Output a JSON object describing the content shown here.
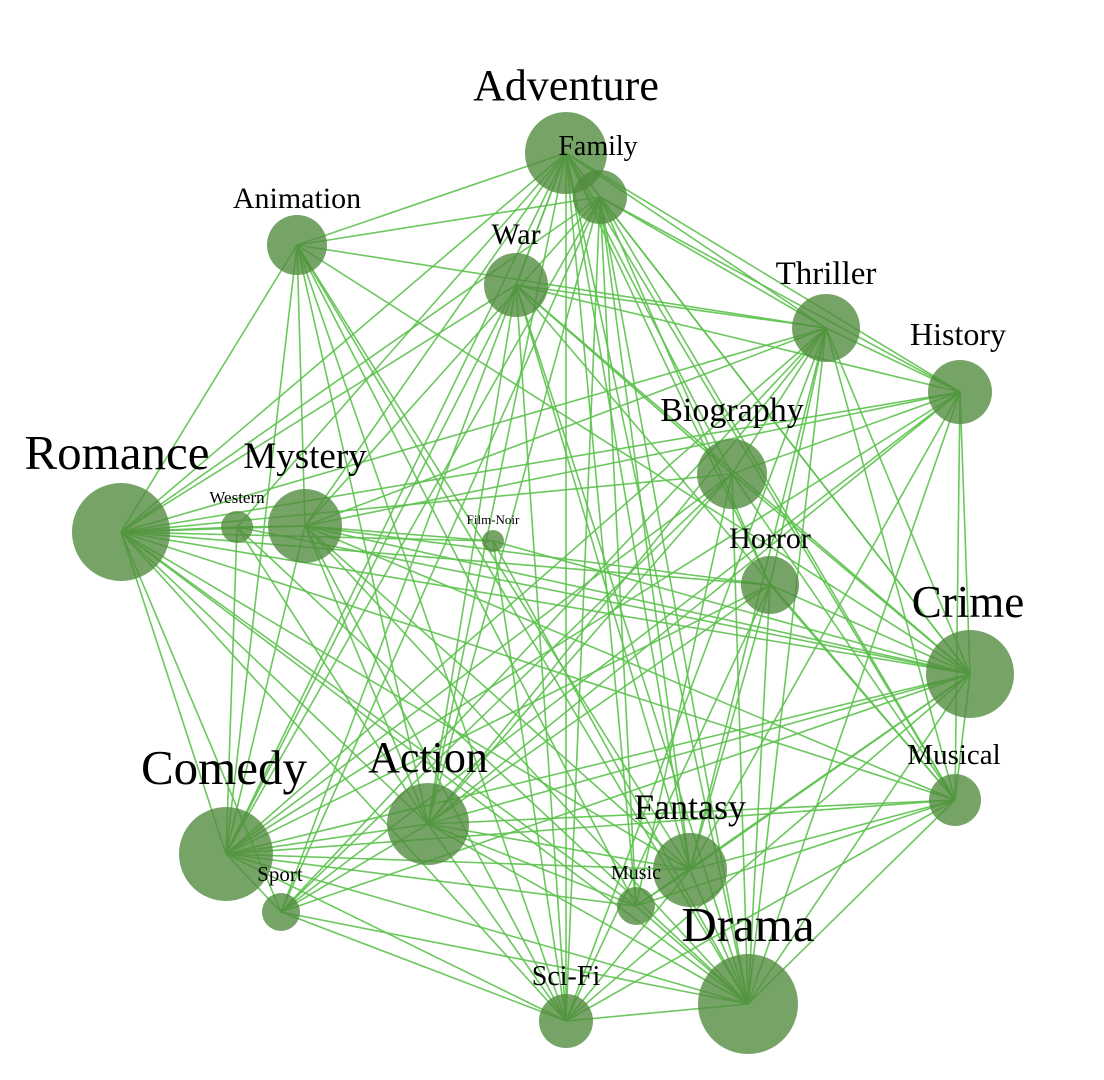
{
  "colors": {
    "edge": "#5cc14c",
    "node": "#4f8a3c",
    "label": "#000000",
    "background": "#ffffff"
  },
  "nodes": [
    {
      "id": "adventure",
      "label": "Adventure"
    },
    {
      "id": "family",
      "label": "Family"
    },
    {
      "id": "animation",
      "label": "Animation"
    },
    {
      "id": "war",
      "label": "War"
    },
    {
      "id": "thriller",
      "label": "Thriller"
    },
    {
      "id": "history",
      "label": "History"
    },
    {
      "id": "biography",
      "label": "Biography"
    },
    {
      "id": "romance",
      "label": "Romance"
    },
    {
      "id": "mystery",
      "label": "Mystery"
    },
    {
      "id": "western",
      "label": "Western"
    },
    {
      "id": "film-noir",
      "label": "Film-Noir"
    },
    {
      "id": "horror",
      "label": "Horror"
    },
    {
      "id": "crime",
      "label": "Crime"
    },
    {
      "id": "comedy",
      "label": "Comedy"
    },
    {
      "id": "action",
      "label": "Action"
    },
    {
      "id": "musical",
      "label": "Musical"
    },
    {
      "id": "fantasy",
      "label": "Fantasy"
    },
    {
      "id": "sport",
      "label": "Sport"
    },
    {
      "id": "music",
      "label": "Music"
    },
    {
      "id": "drama",
      "label": "Drama"
    },
    {
      "id": "sci-fi",
      "label": "Sci-Fi"
    }
  ],
  "edges": [
    [
      "adventure",
      "family"
    ],
    [
      "adventure",
      "animation"
    ],
    [
      "adventure",
      "war"
    ],
    [
      "adventure",
      "thriller"
    ],
    [
      "adventure",
      "history"
    ],
    [
      "adventure",
      "biography"
    ],
    [
      "adventure",
      "romance"
    ],
    [
      "adventure",
      "mystery"
    ],
    [
      "adventure",
      "crime"
    ],
    [
      "adventure",
      "comedy"
    ],
    [
      "adventure",
      "action"
    ],
    [
      "adventure",
      "fantasy"
    ],
    [
      "adventure",
      "drama"
    ],
    [
      "adventure",
      "sci-fi"
    ],
    [
      "adventure",
      "horror"
    ],
    [
      "adventure",
      "musical"
    ],
    [
      "adventure",
      "music"
    ],
    [
      "adventure",
      "sport"
    ],
    [
      "adventure",
      "western"
    ],
    [
      "family",
      "animation"
    ],
    [
      "family",
      "thriller"
    ],
    [
      "family",
      "romance"
    ],
    [
      "family",
      "comedy"
    ],
    [
      "family",
      "action"
    ],
    [
      "family",
      "fantasy"
    ],
    [
      "family",
      "drama"
    ],
    [
      "family",
      "crime"
    ],
    [
      "family",
      "sci-fi"
    ],
    [
      "family",
      "musical"
    ],
    [
      "family",
      "history"
    ],
    [
      "family",
      "music"
    ],
    [
      "family",
      "sport"
    ],
    [
      "family",
      "mystery"
    ],
    [
      "family",
      "horror"
    ],
    [
      "animation",
      "comedy"
    ],
    [
      "animation",
      "action"
    ],
    [
      "animation",
      "fantasy"
    ],
    [
      "animation",
      "romance"
    ],
    [
      "animation",
      "drama"
    ],
    [
      "animation",
      "thriller"
    ],
    [
      "animation",
      "mystery"
    ],
    [
      "animation",
      "sci-fi"
    ],
    [
      "animation",
      "music"
    ],
    [
      "animation",
      "crime"
    ],
    [
      "war",
      "comedy"
    ],
    [
      "war",
      "action"
    ],
    [
      "war",
      "drama"
    ],
    [
      "war",
      "romance"
    ],
    [
      "war",
      "thriller"
    ],
    [
      "war",
      "history"
    ],
    [
      "war",
      "crime"
    ],
    [
      "war",
      "biography"
    ],
    [
      "war",
      "fantasy"
    ],
    [
      "war",
      "sci-fi"
    ],
    [
      "war",
      "musical"
    ],
    [
      "thriller",
      "romance"
    ],
    [
      "thriller",
      "mystery"
    ],
    [
      "thriller",
      "crime"
    ],
    [
      "thriller",
      "comedy"
    ],
    [
      "thriller",
      "action"
    ],
    [
      "thriller",
      "horror"
    ],
    [
      "thriller",
      "drama"
    ],
    [
      "thriller",
      "sci-fi"
    ],
    [
      "thriller",
      "fantasy"
    ],
    [
      "thriller",
      "history"
    ],
    [
      "thriller",
      "musical"
    ],
    [
      "thriller",
      "biography"
    ],
    [
      "thriller",
      "sport"
    ],
    [
      "history",
      "romance"
    ],
    [
      "history",
      "biography"
    ],
    [
      "history",
      "drama"
    ],
    [
      "history",
      "crime"
    ],
    [
      "history",
      "comedy"
    ],
    [
      "history",
      "action"
    ],
    [
      "history",
      "mystery"
    ],
    [
      "history",
      "musical"
    ],
    [
      "history",
      "fantasy"
    ],
    [
      "history",
      "sport"
    ],
    [
      "biography",
      "romance"
    ],
    [
      "biography",
      "crime"
    ],
    [
      "biography",
      "drama"
    ],
    [
      "biography",
      "comedy"
    ],
    [
      "biography",
      "action"
    ],
    [
      "biography",
      "sport"
    ],
    [
      "biography",
      "music"
    ],
    [
      "biography",
      "musical"
    ],
    [
      "romance",
      "western"
    ],
    [
      "romance",
      "mystery"
    ],
    [
      "romance",
      "film-noir"
    ],
    [
      "romance",
      "horror"
    ],
    [
      "romance",
      "crime"
    ],
    [
      "romance",
      "comedy"
    ],
    [
      "romance",
      "action"
    ],
    [
      "romance",
      "musical"
    ],
    [
      "romance",
      "fantasy"
    ],
    [
      "romance",
      "drama"
    ],
    [
      "romance",
      "sci-fi"
    ],
    [
      "romance",
      "sport"
    ],
    [
      "romance",
      "music"
    ],
    [
      "mystery",
      "film-noir"
    ],
    [
      "mystery",
      "horror"
    ],
    [
      "mystery",
      "crime"
    ],
    [
      "mystery",
      "comedy"
    ],
    [
      "mystery",
      "action"
    ],
    [
      "mystery",
      "fantasy"
    ],
    [
      "mystery",
      "drama"
    ],
    [
      "mystery",
      "sci-fi"
    ],
    [
      "mystery",
      "musical"
    ],
    [
      "mystery",
      "western"
    ],
    [
      "western",
      "comedy"
    ],
    [
      "western",
      "drama"
    ],
    [
      "western",
      "action"
    ],
    [
      "western",
      "crime"
    ],
    [
      "film-noir",
      "crime"
    ],
    [
      "film-noir",
      "drama"
    ],
    [
      "film-noir",
      "sci-fi"
    ],
    [
      "horror",
      "crime"
    ],
    [
      "horror",
      "comedy"
    ],
    [
      "horror",
      "action"
    ],
    [
      "horror",
      "fantasy"
    ],
    [
      "horror",
      "drama"
    ],
    [
      "horror",
      "sci-fi"
    ],
    [
      "horror",
      "musical"
    ],
    [
      "crime",
      "comedy"
    ],
    [
      "crime",
      "action"
    ],
    [
      "crime",
      "drama"
    ],
    [
      "crime",
      "fantasy"
    ],
    [
      "crime",
      "musical"
    ],
    [
      "crime",
      "sci-fi"
    ],
    [
      "crime",
      "music"
    ],
    [
      "crime",
      "sport"
    ],
    [
      "comedy",
      "action"
    ],
    [
      "comedy",
      "fantasy"
    ],
    [
      "comedy",
      "drama"
    ],
    [
      "comedy",
      "sci-fi"
    ],
    [
      "comedy",
      "musical"
    ],
    [
      "comedy",
      "sport"
    ],
    [
      "comedy",
      "music"
    ],
    [
      "action",
      "fantasy"
    ],
    [
      "action",
      "drama"
    ],
    [
      "action",
      "sci-fi"
    ],
    [
      "action",
      "musical"
    ],
    [
      "action",
      "sport"
    ],
    [
      "action",
      "music"
    ],
    [
      "musical",
      "fantasy"
    ],
    [
      "musical",
      "drama"
    ],
    [
      "musical",
      "music"
    ],
    [
      "musical",
      "sci-fi"
    ],
    [
      "fantasy",
      "drama"
    ],
    [
      "fantasy",
      "sci-fi"
    ],
    [
      "fantasy",
      "music"
    ],
    [
      "sport",
      "drama"
    ],
    [
      "sport",
      "sci-fi"
    ],
    [
      "music",
      "drama"
    ],
    [
      "drama",
      "sci-fi"
    ]
  ]
}
